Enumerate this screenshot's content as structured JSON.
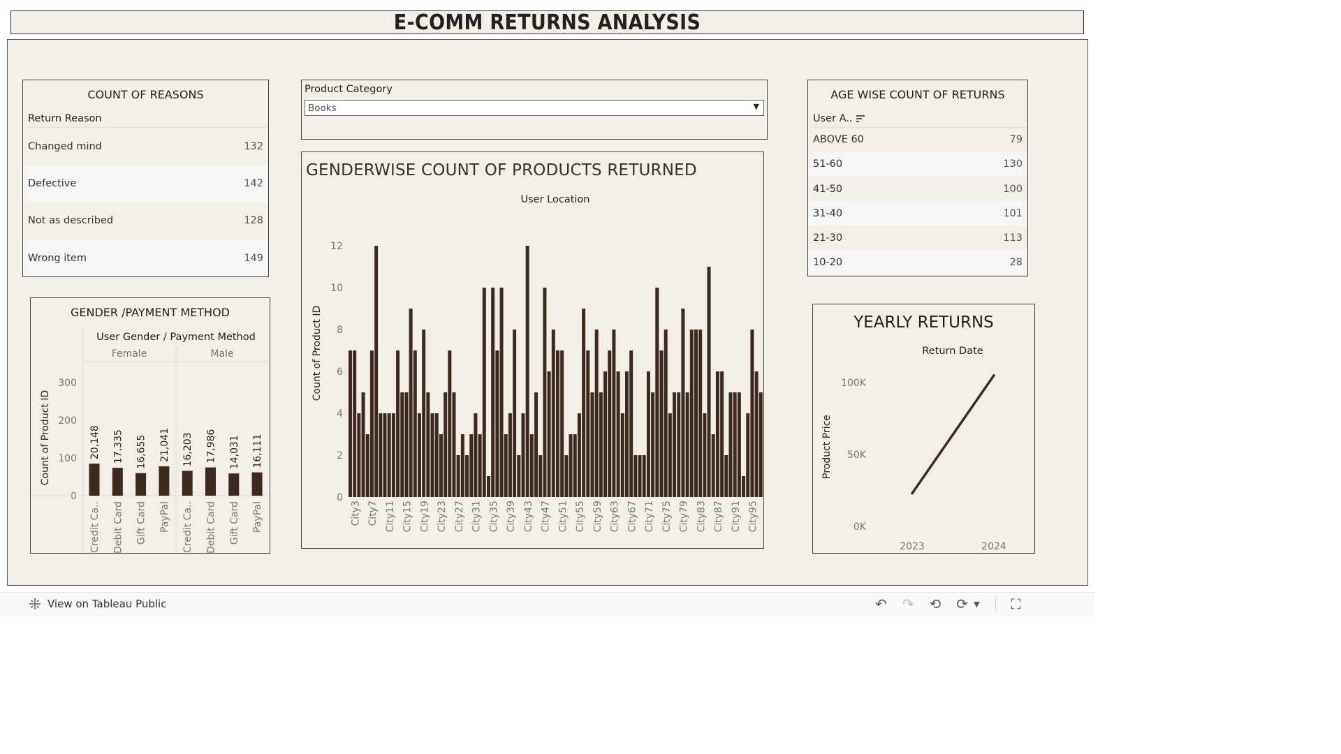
{
  "title": "E-COMM RETURNS ANALYSIS",
  "reasons": {
    "title": "COUNT OF REASONS",
    "header": "Return Reason",
    "rows": [
      {
        "label": "Changed mind",
        "value": "132"
      },
      {
        "label": "Defective",
        "value": "142"
      },
      {
        "label": "Not as described",
        "value": "128"
      },
      {
        "label": "Wrong item",
        "value": "149"
      }
    ]
  },
  "filter": {
    "label": "Product Category",
    "value": "Books"
  },
  "age": {
    "title": "AGE WISE COUNT OF RETURNS",
    "header": "User A..",
    "rows": [
      {
        "label": "ABOVE 60",
        "value": "79"
      },
      {
        "label": "51-60",
        "value": "130"
      },
      {
        "label": "41-50",
        "value": "100"
      },
      {
        "label": "31-40",
        "value": "101"
      },
      {
        "label": "21-30",
        "value": "113"
      },
      {
        "label": "10-20",
        "value": "28"
      }
    ]
  },
  "gender_chart": {
    "title": "GENDER /PAYMENT METHOD",
    "header": "User Gender / Payment Method",
    "groups": [
      "Female",
      "Male"
    ],
    "ylabel": "Count of Product ID"
  },
  "city_chart": {
    "title": "GENDERWISE COUNT OF PRODUCTS RETURNED",
    "header": "User Location",
    "ylabel": "Count of Product ID"
  },
  "yearly_chart": {
    "title": "YEARLY RETURNS",
    "header": "Return Date",
    "ylabel": "Product Price"
  },
  "footer": {
    "link": "View on Tableau Public"
  },
  "chart_data": [
    {
      "type": "bar",
      "name": "gender-payment",
      "categories": [
        "Credit Ca..",
        "Debit Card",
        "Gift Card",
        "PayPal",
        "Credit Ca..",
        "Debit Card",
        "Gift Card",
        "PayPal"
      ],
      "groups": [
        "Female",
        "Female",
        "Female",
        "Female",
        "Male",
        "Male",
        "Male",
        "Male"
      ],
      "values": [
        85,
        74,
        60,
        78,
        66,
        75,
        59,
        62
      ],
      "labels": [
        "20,148",
        "17,335",
        "16,655",
        "21,041",
        "16,203",
        "17,986",
        "14,031",
        "16,111"
      ],
      "yticks": [
        0,
        100,
        200,
        300
      ],
      "ylim": [
        0,
        330
      ],
      "xlabel": "User Gender / Payment Method",
      "ylabel": "Count of Product ID"
    },
    {
      "type": "bar",
      "name": "city-returns",
      "xlabel": "User Location",
      "ylabel": "Count of Product ID",
      "yticks": [
        0,
        2,
        4,
        6,
        8,
        10,
        12
      ],
      "ylim": [
        0,
        12.8
      ],
      "tick_labels": [
        "City3",
        "City7",
        "City11",
        "City15",
        "City19",
        "City23",
        "City27",
        "City31",
        "City35",
        "City39",
        "City43",
        "City47",
        "City51",
        "City55",
        "City59",
        "City63",
        "City67",
        "City71",
        "City75",
        "City79",
        "City83",
        "City87",
        "City91",
        "City95"
      ],
      "values": [
        7,
        7,
        4,
        5,
        3,
        7,
        12,
        4,
        4,
        4,
        4,
        7,
        5,
        5,
        9,
        7,
        4,
        8,
        5,
        4,
        4,
        3,
        5,
        7,
        5,
        2,
        3,
        2,
        3,
        4,
        3,
        10,
        1,
        10,
        7,
        10,
        3,
        4,
        8,
        2,
        4,
        12,
        3,
        5,
        2,
        10,
        6,
        8,
        7,
        7,
        2,
        3,
        3,
        4,
        9,
        7,
        5,
        8,
        5,
        6,
        7,
        8,
        6,
        4,
        6,
        7,
        2,
        2,
        2,
        6,
        5,
        10,
        7,
        8,
        4,
        5,
        5,
        9,
        5,
        8,
        8,
        8,
        4,
        11,
        3,
        6,
        6,
        2,
        5,
        5,
        5,
        1,
        4,
        8,
        6,
        5
      ]
    },
    {
      "type": "line",
      "name": "yearly-returns",
      "x": [
        "2023",
        "2024"
      ],
      "y": [
        23000,
        105000
      ],
      "yticks": [
        "0K",
        "50K",
        "100K"
      ],
      "xlabel": "Return Date",
      "ylabel": "Product Price"
    }
  ]
}
